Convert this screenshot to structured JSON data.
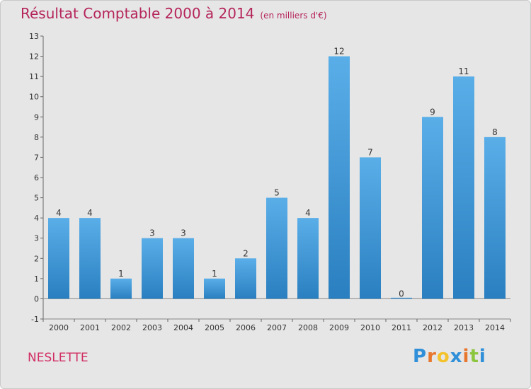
{
  "header": {
    "title": "Résultat Comptable 2000 à 2014",
    "unit": "(en milliers d'€)"
  },
  "commune": "NESLETTE",
  "logo": {
    "letters": [
      "P",
      "r",
      "o",
      "x",
      "i",
      "t",
      "i"
    ],
    "colors": [
      "#2f8fd8",
      "#e8772e",
      "#f4c22b",
      "#2f8fd8",
      "#e8772e",
      "#8cc63f",
      "#2f8fd8"
    ]
  },
  "colors": {
    "bar_light": "#5aaee8",
    "bar_dark": "#2a7fc0",
    "title": "#b5245a"
  },
  "chart_data": {
    "type": "bar",
    "title": "Résultat Comptable 2000 à 2014",
    "categories": [
      "2000",
      "2001",
      "2002",
      "2003",
      "2004",
      "2005",
      "2006",
      "2007",
      "2008",
      "2009",
      "2010",
      "2011",
      "2012",
      "2013",
      "2014"
    ],
    "values": [
      4,
      4,
      1,
      3,
      3,
      1,
      2,
      5,
      4,
      12,
      7,
      0,
      9,
      11,
      8
    ],
    "data_labels": [
      "4",
      "4",
      "1",
      "3",
      "3",
      "1",
      "2",
      "5",
      "4",
      "12",
      "7",
      "0",
      "9",
      "11",
      "8"
    ],
    "xlabel": "",
    "ylabel": "",
    "ylim": [
      -1,
      13
    ],
    "yticks": [
      -1,
      0,
      1,
      2,
      3,
      4,
      5,
      6,
      7,
      8,
      9,
      10,
      11,
      12,
      13
    ],
    "grid": false,
    "legend": "none"
  }
}
